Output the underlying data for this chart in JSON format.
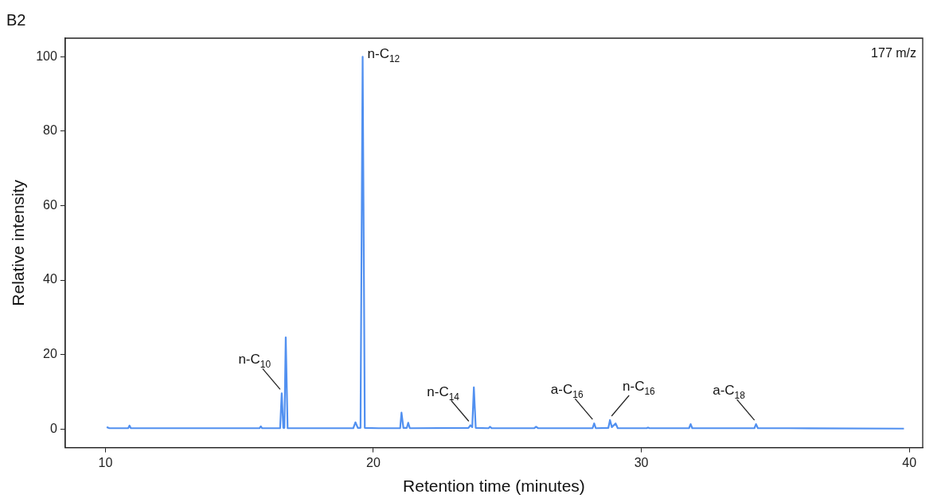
{
  "chart_data": {
    "type": "line",
    "title": "B2",
    "xlabel": "Retention time (minutes)",
    "ylabel": "Relative intensity",
    "x": [
      10.05,
      10.15,
      10.85,
      10.9,
      10.95,
      15.75,
      15.8,
      15.85,
      16.52,
      16.58,
      16.64,
      16.68,
      16.73,
      16.8,
      19.25,
      19.33,
      19.42,
      19.52,
      19.6,
      19.68,
      20.2,
      21.0,
      21.05,
      21.12,
      21.25,
      21.3,
      21.36,
      23.55,
      23.62,
      23.69,
      23.75,
      23.82,
      24.3,
      24.35,
      24.42,
      26.0,
      26.07,
      26.15,
      28.18,
      28.24,
      28.3,
      28.77,
      28.83,
      28.9,
      29.04,
      29.12,
      30.2,
      30.25,
      30.3,
      31.78,
      31.84,
      31.9,
      34.22,
      34.28,
      34.35,
      35.5,
      39.8
    ],
    "series": [
      {
        "color": "#5190f0",
        "values": [
          0.5,
          0.2,
          0.2,
          0.9,
          0.2,
          0.2,
          0.7,
          0.2,
          0.2,
          9.6,
          0.3,
          0.3,
          24.6,
          0.2,
          0.2,
          1.8,
          0.3,
          0.3,
          100,
          0.3,
          0.2,
          0.2,
          4.4,
          0.3,
          0.3,
          1.7,
          0.2,
          0.3,
          1,
          0.5,
          11.2,
          0.3,
          0.2,
          0.6,
          0.2,
          0.2,
          0.6,
          0.2,
          0.2,
          1.5,
          0.2,
          0.3,
          2.4,
          0.5,
          1.5,
          0.2,
          0.2,
          0.4,
          0.2,
          0.2,
          1.3,
          0.2,
          0.2,
          1.3,
          0.2,
          0.2,
          0.1
        ]
      }
    ],
    "xlim": [
      8.5,
      40.5
    ],
    "xticks": [
      10,
      20,
      30,
      40
    ],
    "ylim": [
      -5,
      105
    ],
    "yticks": [
      0,
      20,
      40,
      60,
      80,
      100
    ],
    "grid": false,
    "legend": false,
    "marker": "none",
    "line_style": "solid",
    "annotations": [
      {
        "text": "n-C$_{10}$",
        "x": 16.58,
        "y": 9.6
      },
      {
        "text": "n-C$_{12}$",
        "x": 19.6,
        "y": 100
      },
      {
        "text": "n-C$_{14}$",
        "x": 23.62,
        "y": 1
      },
      {
        "text": "a-C$_{16}$",
        "x": 28.24,
        "y": 1.5
      },
      {
        "text": "n-C$_{16}$",
        "x": 28.83,
        "y": 2.4
      },
      {
        "text": "a-C$_{18}$",
        "x": 34.28,
        "y": 1.3
      },
      "177 m/z"
    ]
  }
}
